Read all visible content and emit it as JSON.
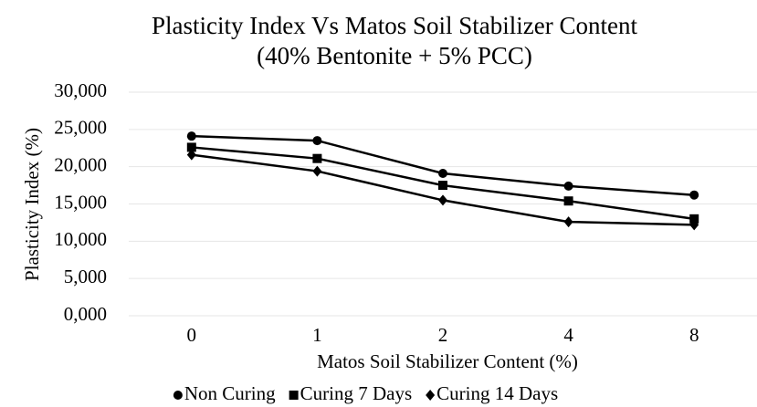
{
  "chart_data": {
    "type": "line",
    "title": "Plasticity Index Vs Matos Soil Stabilizer Content",
    "subtitle": "(40% Bentonite + 5% PCC)",
    "x_label": "Matos Soil Stabilizer Content (%)",
    "y_label": "Plasticity Index (%)",
    "categories": [
      "0",
      "1",
      "2",
      "4",
      "8"
    ],
    "series": [
      {
        "name": "Non Curing",
        "color": "#000000",
        "marker": "circle",
        "values": [
          24.1,
          23.5,
          19.1,
          17.4,
          16.2
        ]
      },
      {
        "name": "Curing 7 Days",
        "color": "#000000",
        "marker": "square",
        "values": [
          22.6,
          21.1,
          17.5,
          15.4,
          13.0
        ]
      },
      {
        "name": "Curing 14 Days",
        "color": "#000000",
        "marker": "diamond",
        "values": [
          21.6,
          19.4,
          15.5,
          12.6,
          12.2
        ]
      }
    ],
    "ylim": [
      0,
      30
    ],
    "yticks": [
      {
        "value": 0,
        "label": "0,000"
      },
      {
        "value": 5,
        "label": "5,000"
      },
      {
        "value": 10,
        "label": "10,000"
      },
      {
        "value": 15,
        "label": "15,000"
      },
      {
        "value": 20,
        "label": "20,000"
      },
      {
        "value": 25,
        "label": "25,000"
      },
      {
        "value": 30,
        "label": "30,000"
      }
    ],
    "grid": true,
    "legend": "bottom"
  }
}
